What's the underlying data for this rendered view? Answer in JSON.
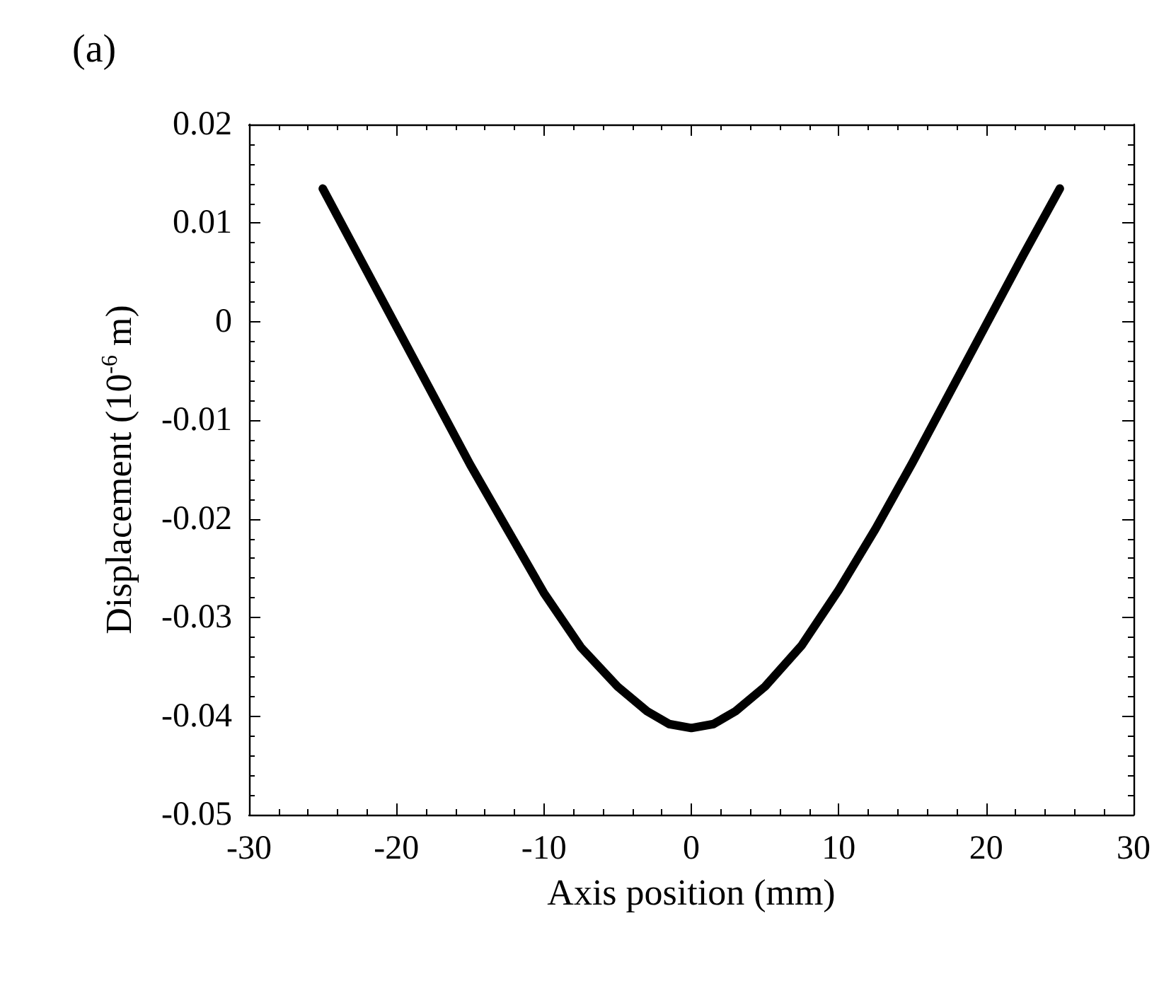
{
  "chart_data": {
    "type": "line",
    "title": "(a)",
    "xlabel": "Axis position (mm)",
    "ylabel": "Displacement (10$^{-6}$ m)",
    "x": [
      -25,
      -22.5,
      -20,
      -17.5,
      -15,
      -12.5,
      -10,
      -7.5,
      -5,
      -3,
      -1.5,
      0,
      1.5,
      3,
      5,
      7.5,
      10,
      12.5,
      15,
      17.5,
      20,
      22.5,
      25
    ],
    "series": [
      {
        "color": "#000000",
        "values": [
          0.0135,
          0.0065,
          -0.0005,
          -0.0075,
          -0.0145,
          -0.021,
          -0.0275,
          -0.033,
          -0.037,
          -0.0395,
          -0.0408,
          -0.0412,
          -0.0408,
          -0.0395,
          -0.037,
          -0.0328,
          -0.0272,
          -0.021,
          -0.0143,
          -0.0073,
          -0.0003,
          0.0067,
          0.0135
        ]
      }
    ],
    "xlim": [
      -30,
      30
    ],
    "xticks": [
      -30,
      -20,
      -10,
      0,
      10,
      20,
      30
    ],
    "ylim": [
      -0.05,
      0.02
    ],
    "yticks": [
      -0.05,
      -0.04,
      -0.03,
      -0.02,
      -0.01,
      0,
      0.01,
      0.02
    ],
    "marker": "none",
    "line_style": "solid"
  }
}
